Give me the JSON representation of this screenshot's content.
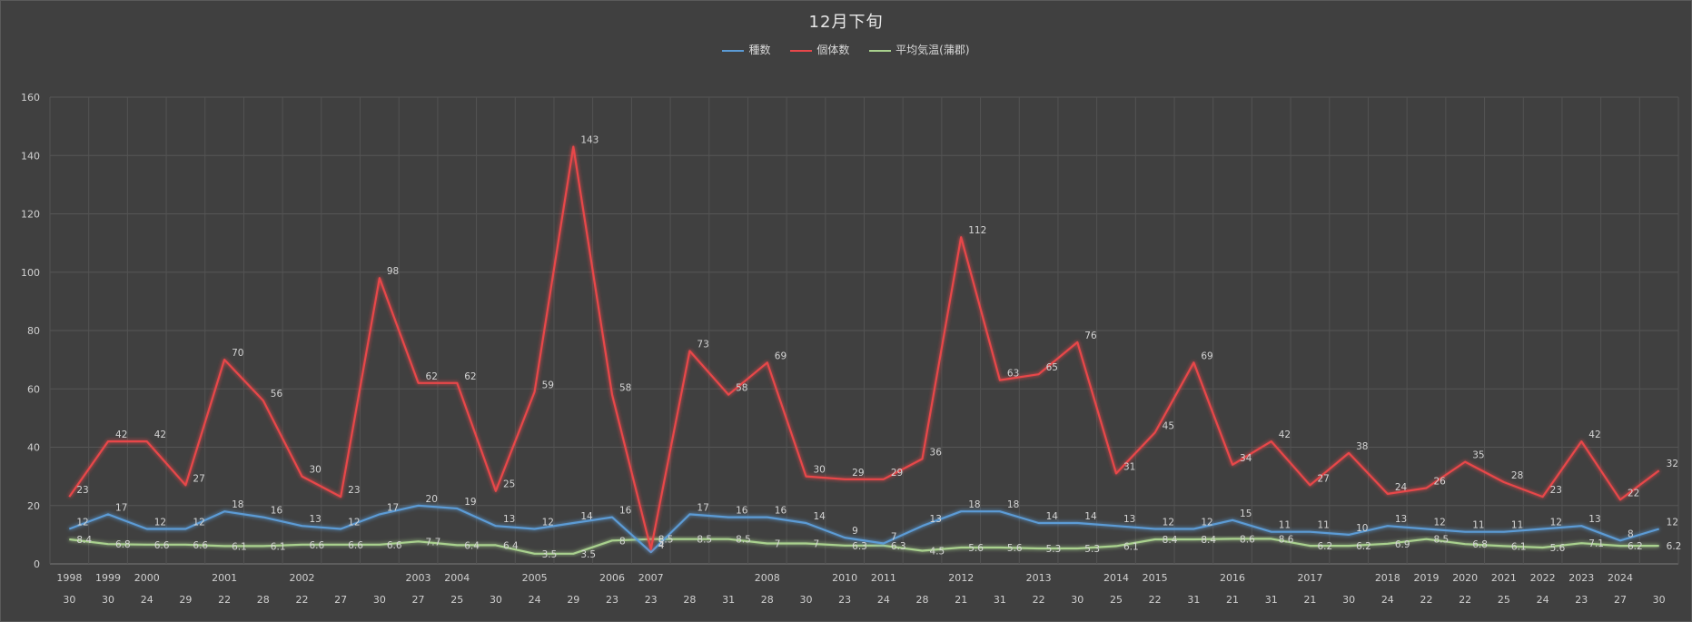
{
  "chart_data": {
    "type": "line",
    "title": "12月下旬",
    "ylim": [
      0,
      160
    ],
    "yticks": [
      0,
      20,
      40,
      60,
      80,
      100,
      120,
      140,
      160
    ],
    "grid": true,
    "legend_position": "top",
    "categories": [
      {
        "day": "30",
        "year": "1998"
      },
      {
        "day": "30",
        "year": "1999"
      },
      {
        "day": "24",
        "year": "2000"
      },
      {
        "day": "29",
        "year": ""
      },
      {
        "day": "22",
        "year": "2001"
      },
      {
        "day": "28",
        "year": ""
      },
      {
        "day": "22",
        "year": "2002"
      },
      {
        "day": "27",
        "year": ""
      },
      {
        "day": "30",
        "year": ""
      },
      {
        "day": "27",
        "year": "2003"
      },
      {
        "day": "25",
        "year": "2004"
      },
      {
        "day": "30",
        "year": ""
      },
      {
        "day": "24",
        "year": "2005"
      },
      {
        "day": "29",
        "year": ""
      },
      {
        "day": "23",
        "year": "2006"
      },
      {
        "day": "23",
        "year": "2007"
      },
      {
        "day": "28",
        "year": ""
      },
      {
        "day": "31",
        "year": ""
      },
      {
        "day": "28",
        "year": "2008"
      },
      {
        "day": "30",
        "year": ""
      },
      {
        "day": "23",
        "year": "2010"
      },
      {
        "day": "24",
        "year": "2011"
      },
      {
        "day": "28",
        "year": ""
      },
      {
        "day": "21",
        "year": "2012"
      },
      {
        "day": "31",
        "year": ""
      },
      {
        "day": "22",
        "year": "2013"
      },
      {
        "day": "30",
        "year": ""
      },
      {
        "day": "25",
        "year": "2014"
      },
      {
        "day": "22",
        "year": "2015"
      },
      {
        "day": "31",
        "year": ""
      },
      {
        "day": "21",
        "year": "2016"
      },
      {
        "day": "31",
        "year": ""
      },
      {
        "day": "21",
        "year": "2017"
      },
      {
        "day": "30",
        "year": ""
      },
      {
        "day": "24",
        "year": "2018"
      },
      {
        "day": "22",
        "year": "2019"
      },
      {
        "day": "22",
        "year": "2020"
      },
      {
        "day": "25",
        "year": "2021"
      },
      {
        "day": "24",
        "year": "2022"
      },
      {
        "day": "23",
        "year": "2023"
      },
      {
        "day": "27",
        "year": "2024"
      },
      {
        "day": "30",
        "year": ""
      }
    ],
    "series": [
      {
        "name": "種数",
        "color": "#5b9bd5",
        "values": [
          12,
          17,
          12,
          12,
          18,
          16,
          13,
          12,
          17,
          20,
          19,
          13,
          12,
          14,
          16,
          4,
          17,
          16,
          16,
          14,
          9,
          7,
          13,
          18,
          18,
          14,
          14,
          13,
          12,
          12,
          15,
          11,
          11,
          10,
          13,
          12,
          11,
          11,
          12,
          13,
          8,
          12
        ]
      },
      {
        "name": "個体数",
        "color": "#e8474a",
        "values": [
          23,
          42,
          42,
          27,
          70,
          56,
          30,
          23,
          98,
          62,
          62,
          25,
          59,
          143,
          58,
          5,
          73,
          58,
          69,
          30,
          29,
          29,
          36,
          112,
          63,
          65,
          76,
          31,
          45,
          69,
          34,
          42,
          27,
          38,
          24,
          26,
          35,
          28,
          23,
          42,
          22,
          32
        ]
      },
      {
        "name": "平均気温(蒲郡)",
        "color": "#a9d18e",
        "values": [
          8.4,
          6.8,
          6.6,
          6.6,
          6.1,
          6.1,
          6.6,
          6.6,
          6.6,
          7.7,
          6.4,
          6.4,
          3.5,
          3.5,
          8,
          8.5,
          8.5,
          8.5,
          7,
          7,
          6.3,
          6.3,
          4.5,
          5.6,
          5.6,
          5.3,
          5.3,
          6.1,
          8.4,
          8.4,
          8.6,
          8.6,
          6.2,
          6.2,
          6.9,
          8.5,
          6.8,
          6.1,
          5.6,
          7.1,
          6.2,
          6.2
        ]
      }
    ]
  }
}
